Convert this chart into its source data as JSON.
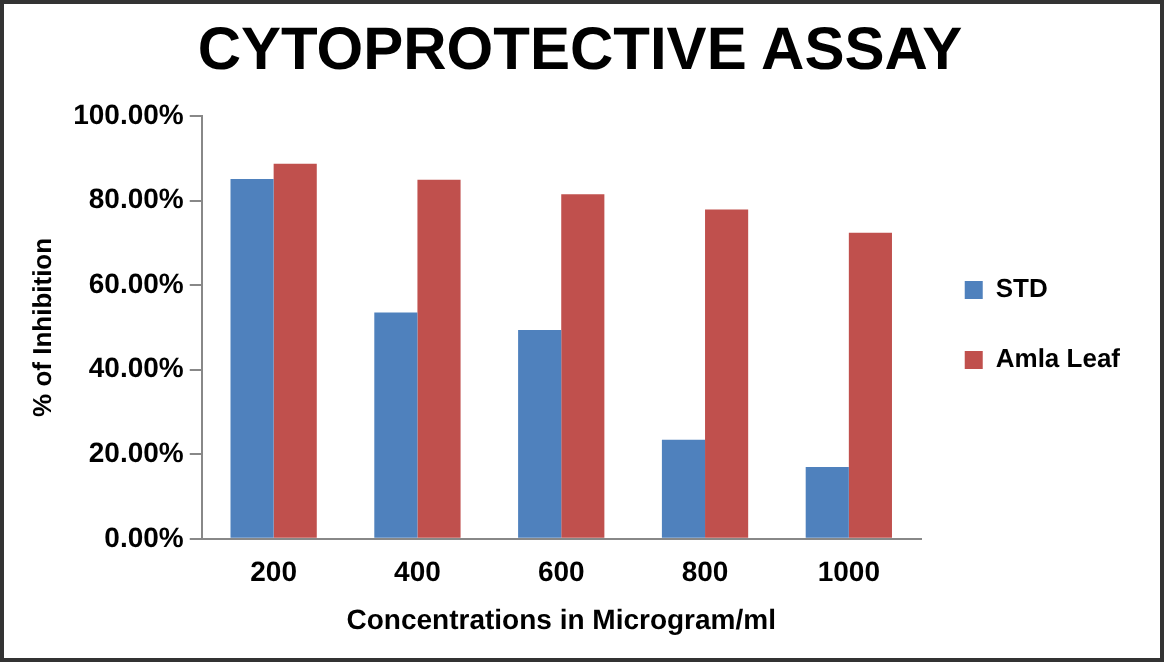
{
  "chart_data": {
    "type": "bar",
    "title": "CYTOPROTECTIVE ASSAY",
    "xlabel": "Concentrations in Microgram/ml",
    "ylabel": "% of Inhibition",
    "categories": [
      "200",
      "400",
      "600",
      "800",
      "1000"
    ],
    "series": [
      {
        "name": "STD",
        "color": "#4f81bd",
        "values": [
          85.1,
          53.5,
          49.4,
          23.4,
          17
        ]
      },
      {
        "name": "Amla Leaf",
        "color": "#c0504d",
        "values": [
          88.7,
          84.9,
          81.5,
          77.9,
          72.4
        ]
      }
    ],
    "ylim": [
      0,
      100
    ],
    "yticks": [
      {
        "value": 0,
        "label": "0.00%"
      },
      {
        "value": 20,
        "label": "20.00%"
      },
      {
        "value": 40,
        "label": "40.00%"
      },
      {
        "value": 60,
        "label": "60.00%"
      },
      {
        "value": 80,
        "label": "80.00%"
      },
      {
        "value": 100,
        "label": "100.00%"
      }
    ],
    "grid": false,
    "legend": "right"
  }
}
